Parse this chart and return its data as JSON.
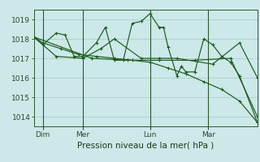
{
  "bg_color": "#cce8e8",
  "plot_bg_color": "#cce8e8",
  "grid_color": "#aad0d0",
  "line_color": "#1a5c1a",
  "title": "Pression niveau de la mer( hPa )",
  "ylabel_ticks": [
    1014,
    1015,
    1016,
    1017,
    1018,
    1019
  ],
  "ylim": [
    1013.5,
    1019.5
  ],
  "day_labels": [
    "Dim",
    "Mer",
    "Lun",
    "Mar"
  ],
  "day_positions": [
    0.04,
    0.22,
    0.52,
    0.78
  ],
  "vline_positions": [
    0.04,
    0.22,
    0.52,
    0.78
  ],
  "series": [
    {
      "x": [
        0,
        0.04,
        0.12,
        0.2,
        0.28,
        0.36,
        0.44,
        0.52,
        0.6,
        0.68,
        0.76,
        0.84,
        0.92,
        1.0
      ],
      "y": [
        1018.1,
        1017.8,
        1017.5,
        1017.2,
        1017.1,
        1017.0,
        1016.9,
        1016.8,
        1016.5,
        1016.2,
        1015.8,
        1015.4,
        1014.8,
        1013.7
      ]
    },
    {
      "x": [
        0,
        0.04,
        0.1,
        0.14,
        0.18,
        0.22,
        0.28,
        0.32,
        0.36,
        0.4,
        0.44,
        0.48,
        0.52,
        0.56,
        0.58,
        0.6,
        0.64,
        0.66,
        0.68,
        0.72,
        0.76,
        0.8,
        0.84,
        0.88,
        0.92,
        1.0
      ],
      "y": [
        1018.1,
        1017.7,
        1018.3,
        1018.2,
        1017.1,
        1017.1,
        1017.8,
        1018.6,
        1016.9,
        1016.9,
        1018.8,
        1018.9,
        1019.3,
        1018.6,
        1018.6,
        1017.6,
        1016.1,
        1016.6,
        1016.3,
        1016.3,
        1018.0,
        1017.7,
        1017.1,
        1016.8,
        1016.1,
        1013.7
      ]
    },
    {
      "x": [
        0,
        0.1,
        0.22,
        0.3,
        0.36,
        0.48,
        0.56,
        0.64,
        0.8,
        0.92,
        1.0
      ],
      "y": [
        1018.1,
        1017.1,
        1017.0,
        1017.5,
        1018.0,
        1017.0,
        1017.0,
        1017.0,
        1016.7,
        1017.8,
        1016.0
      ]
    },
    {
      "x": [
        0,
        0.26,
        0.42,
        0.56,
        0.72,
        0.88,
        1.0
      ],
      "y": [
        1018.1,
        1017.0,
        1016.9,
        1016.9,
        1016.9,
        1017.0,
        1014.0
      ]
    }
  ]
}
